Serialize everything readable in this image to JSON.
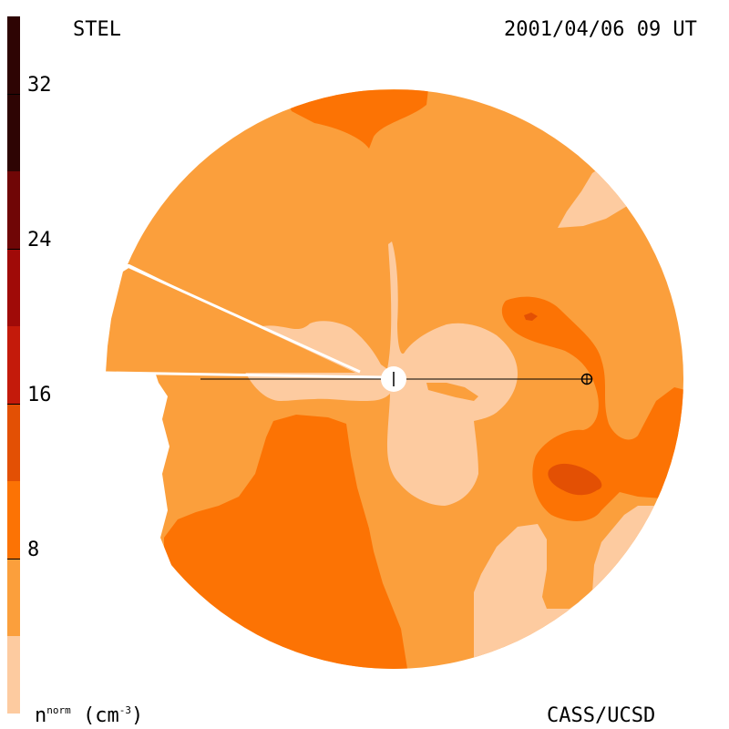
{
  "header": {
    "instrument": "STEL",
    "timestamp": "2001/04/06 09 UT"
  },
  "footer": {
    "quantity_base": "n",
    "quantity_sup": "norm",
    "quantity_unit": "(cm",
    "quantity_unit_sup": "-3",
    "quantity_close": ")",
    "credit": "CASS/UCSD"
  },
  "colorbar": {
    "tick_labels": [
      "32",
      "24",
      "16",
      "8"
    ],
    "tick_values": [
      32,
      24,
      16,
      8
    ],
    "range": [
      0,
      36
    ],
    "levels": [
      {
        "from": 0,
        "to": 4,
        "color": "#fdcba0"
      },
      {
        "from": 4,
        "to": 8,
        "color": "#fb9f3c"
      },
      {
        "from": 8,
        "to": 12,
        "color": "#fc7304"
      },
      {
        "from": 12,
        "to": 16,
        "color": "#e35004"
      },
      {
        "from": 16,
        "to": 20,
        "color": "#c41a0a"
      },
      {
        "from": 20,
        "to": 24,
        "color": "#a00a08"
      },
      {
        "from": 24,
        "to": 28,
        "color": "#700606"
      },
      {
        "from": 28,
        "to": 36,
        "color": "#2e0403"
      }
    ]
  },
  "colors": {
    "level_1": "#fdcba0",
    "level_2": "#fb9f3c",
    "level_3": "#fc7304",
    "level_4": "#e35004"
  },
  "icons": {
    "sun": "sun-icon",
    "earth": "earth-icon"
  }
}
